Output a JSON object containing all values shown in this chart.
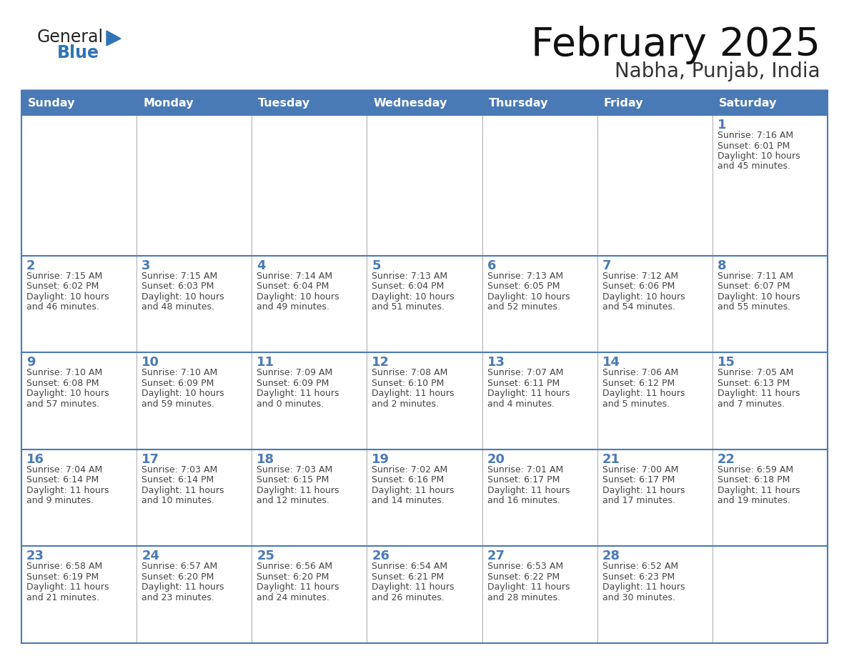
{
  "title": "February 2025",
  "subtitle": "Nabha, Punjab, India",
  "days_of_week": [
    "Sunday",
    "Monday",
    "Tuesday",
    "Wednesday",
    "Thursday",
    "Friday",
    "Saturday"
  ],
  "header_bg": "#4a7ab5",
  "header_text": "#ffffff",
  "cell_bg": "#ffffff",
  "border_color": "#4a7ab5",
  "row_line_color": "#7aaad0",
  "day_num_color": "#4a7ab5",
  "text_color": "#444444",
  "calendar_data": [
    [
      null,
      null,
      null,
      null,
      null,
      null,
      {
        "day": 1,
        "sunrise": "7:16 AM",
        "sunset": "6:01 PM",
        "daylight": "10 hours and 45 minutes."
      }
    ],
    [
      {
        "day": 2,
        "sunrise": "7:15 AM",
        "sunset": "6:02 PM",
        "daylight": "10 hours and 46 minutes."
      },
      {
        "day": 3,
        "sunrise": "7:15 AM",
        "sunset": "6:03 PM",
        "daylight": "10 hours and 48 minutes."
      },
      {
        "day": 4,
        "sunrise": "7:14 AM",
        "sunset": "6:04 PM",
        "daylight": "10 hours and 49 minutes."
      },
      {
        "day": 5,
        "sunrise": "7:13 AM",
        "sunset": "6:04 PM",
        "daylight": "10 hours and 51 minutes."
      },
      {
        "day": 6,
        "sunrise": "7:13 AM",
        "sunset": "6:05 PM",
        "daylight": "10 hours and 52 minutes."
      },
      {
        "day": 7,
        "sunrise": "7:12 AM",
        "sunset": "6:06 PM",
        "daylight": "10 hours and 54 minutes."
      },
      {
        "day": 8,
        "sunrise": "7:11 AM",
        "sunset": "6:07 PM",
        "daylight": "10 hours and 55 minutes."
      }
    ],
    [
      {
        "day": 9,
        "sunrise": "7:10 AM",
        "sunset": "6:08 PM",
        "daylight": "10 hours and 57 minutes."
      },
      {
        "day": 10,
        "sunrise": "7:10 AM",
        "sunset": "6:09 PM",
        "daylight": "10 hours and 59 minutes."
      },
      {
        "day": 11,
        "sunrise": "7:09 AM",
        "sunset": "6:09 PM",
        "daylight": "11 hours and 0 minutes."
      },
      {
        "day": 12,
        "sunrise": "7:08 AM",
        "sunset": "6:10 PM",
        "daylight": "11 hours and 2 minutes."
      },
      {
        "day": 13,
        "sunrise": "7:07 AM",
        "sunset": "6:11 PM",
        "daylight": "11 hours and 4 minutes."
      },
      {
        "day": 14,
        "sunrise": "7:06 AM",
        "sunset": "6:12 PM",
        "daylight": "11 hours and 5 minutes."
      },
      {
        "day": 15,
        "sunrise": "7:05 AM",
        "sunset": "6:13 PM",
        "daylight": "11 hours and 7 minutes."
      }
    ],
    [
      {
        "day": 16,
        "sunrise": "7:04 AM",
        "sunset": "6:14 PM",
        "daylight": "11 hours and 9 minutes."
      },
      {
        "day": 17,
        "sunrise": "7:03 AM",
        "sunset": "6:14 PM",
        "daylight": "11 hours and 10 minutes."
      },
      {
        "day": 18,
        "sunrise": "7:03 AM",
        "sunset": "6:15 PM",
        "daylight": "11 hours and 12 minutes."
      },
      {
        "day": 19,
        "sunrise": "7:02 AM",
        "sunset": "6:16 PM",
        "daylight": "11 hours and 14 minutes."
      },
      {
        "day": 20,
        "sunrise": "7:01 AM",
        "sunset": "6:17 PM",
        "daylight": "11 hours and 16 minutes."
      },
      {
        "day": 21,
        "sunrise": "7:00 AM",
        "sunset": "6:17 PM",
        "daylight": "11 hours and 17 minutes."
      },
      {
        "day": 22,
        "sunrise": "6:59 AM",
        "sunset": "6:18 PM",
        "daylight": "11 hours and 19 minutes."
      }
    ],
    [
      {
        "day": 23,
        "sunrise": "6:58 AM",
        "sunset": "6:19 PM",
        "daylight": "11 hours and 21 minutes."
      },
      {
        "day": 24,
        "sunrise": "6:57 AM",
        "sunset": "6:20 PM",
        "daylight": "11 hours and 23 minutes."
      },
      {
        "day": 25,
        "sunrise": "6:56 AM",
        "sunset": "6:20 PM",
        "daylight": "11 hours and 24 minutes."
      },
      {
        "day": 26,
        "sunrise": "6:54 AM",
        "sunset": "6:21 PM",
        "daylight": "11 hours and 26 minutes."
      },
      {
        "day": 27,
        "sunrise": "6:53 AM",
        "sunset": "6:22 PM",
        "daylight": "11 hours and 28 minutes."
      },
      {
        "day": 28,
        "sunrise": "6:52 AM",
        "sunset": "6:23 PM",
        "daylight": "11 hours and 30 minutes."
      },
      null
    ]
  ],
  "logo_general_color": "#222222",
  "logo_blue_color": "#2e75b6",
  "logo_triangle_color": "#2e75b6"
}
